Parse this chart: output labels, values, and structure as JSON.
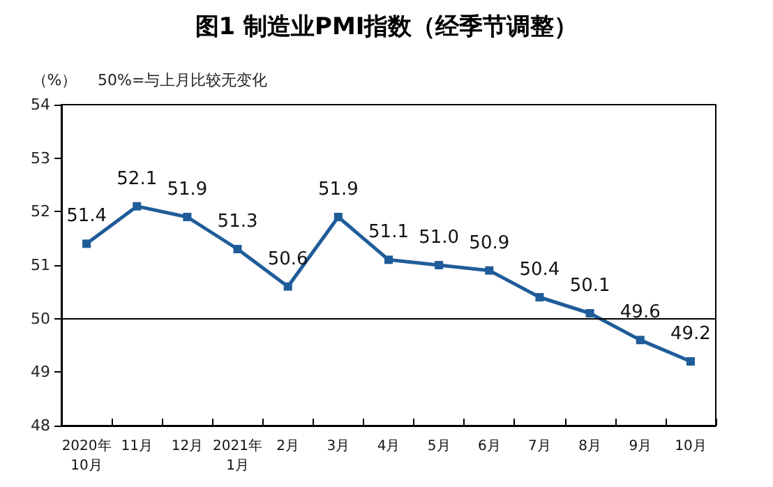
{
  "chart_data": {
    "type": "line",
    "title": "图1 制造业PMI指数（经季节调整）",
    "ylabel": "（%）",
    "annotations": [
      "50%=与上月比较无变化"
    ],
    "categories": [
      "2020年\n10月",
      "11月",
      "12月",
      "2021年\n1月",
      "2月",
      "3月",
      "4月",
      "5月",
      "6月",
      "7月",
      "8月",
      "9月",
      "10月"
    ],
    "series": [
      {
        "color": "#1f5c99",
        "values": [
          51.4,
          52.1,
          51.9,
          51.3,
          50.6,
          51.9,
          51.1,
          51.0,
          50.9,
          50.4,
          50.1,
          49.6,
          49.2
        ],
        "value_labels": [
          "51.4",
          "52.1",
          "51.9",
          "51.3",
          "50.6",
          "51.9",
          "51.1",
          "51.0",
          "50.9",
          "50.4",
          "50.1",
          "49.6",
          "49.2"
        ]
      }
    ],
    "ylim": [
      48,
      54
    ],
    "yticks": [
      48,
      49,
      50,
      51,
      52,
      53,
      54
    ],
    "ref_lines": [
      {
        "axis": "y",
        "value": 50,
        "color": "#000000",
        "line_style": "solid"
      }
    ],
    "grid": false,
    "marker": "square",
    "line_style": "solid"
  }
}
